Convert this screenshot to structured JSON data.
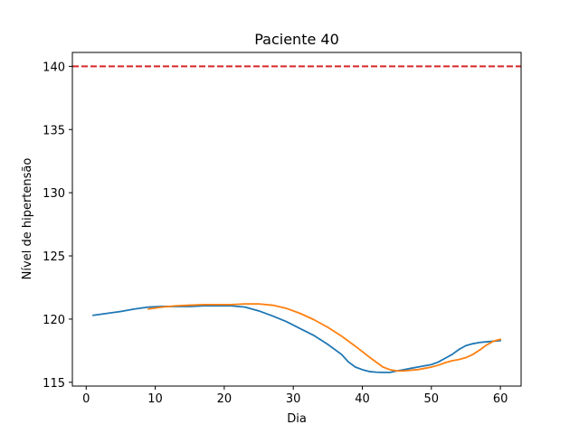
{
  "chart_data": {
    "type": "line",
    "title": "Paciente 40",
    "xlabel": "Dia",
    "ylabel": "Nível de hipertensão",
    "xlim": [
      -2.0,
      63.0
    ],
    "ylim": [
      114.7,
      141.1
    ],
    "xticks": [
      0,
      10,
      20,
      30,
      40,
      50,
      60
    ],
    "yticks": [
      115,
      120,
      125,
      130,
      135,
      140
    ],
    "grid": false,
    "reference_line": {
      "y": 140,
      "color": "#d62728",
      "style": "dashed"
    },
    "series": [
      {
        "color": "#1f77b4",
        "x": [
          1,
          3,
          5,
          7,
          9,
          11,
          13,
          15,
          17,
          19,
          21,
          23,
          25,
          27,
          29,
          31,
          33,
          35,
          37,
          38,
          39,
          40,
          41,
          42,
          43,
          44,
          45,
          46,
          47,
          48,
          49,
          50,
          51,
          52,
          53,
          54,
          55,
          56,
          57,
          58,
          59,
          60
        ],
        "y": [
          120.3,
          120.45,
          120.6,
          120.8,
          120.95,
          121.0,
          121.0,
          121.0,
          121.05,
          121.05,
          121.05,
          120.95,
          120.65,
          120.25,
          119.8,
          119.25,
          118.7,
          118.0,
          117.2,
          116.6,
          116.2,
          116.0,
          115.85,
          115.8,
          115.78,
          115.78,
          115.9,
          116.0,
          116.1,
          116.2,
          116.3,
          116.4,
          116.6,
          116.9,
          117.2,
          117.6,
          117.9,
          118.05,
          118.15,
          118.2,
          118.25,
          118.3
        ]
      },
      {
        "color": "#ff7f0e",
        "x": [
          9,
          11,
          13,
          15,
          17,
          19,
          21,
          23,
          25,
          27,
          29,
          31,
          33,
          35,
          37,
          39,
          41,
          43,
          44,
          45,
          46,
          47,
          48,
          49,
          50,
          51,
          52,
          53,
          54,
          55,
          56,
          57,
          58,
          59,
          60
        ],
        "y": [
          120.8,
          120.95,
          121.05,
          121.1,
          121.15,
          121.15,
          121.15,
          121.2,
          121.2,
          121.1,
          120.85,
          120.45,
          119.95,
          119.35,
          118.65,
          117.85,
          117.0,
          116.2,
          116.0,
          115.9,
          115.9,
          115.95,
          116.0,
          116.1,
          116.2,
          116.35,
          116.55,
          116.7,
          116.8,
          116.95,
          117.2,
          117.55,
          117.95,
          118.25,
          118.4
        ]
      }
    ]
  }
}
